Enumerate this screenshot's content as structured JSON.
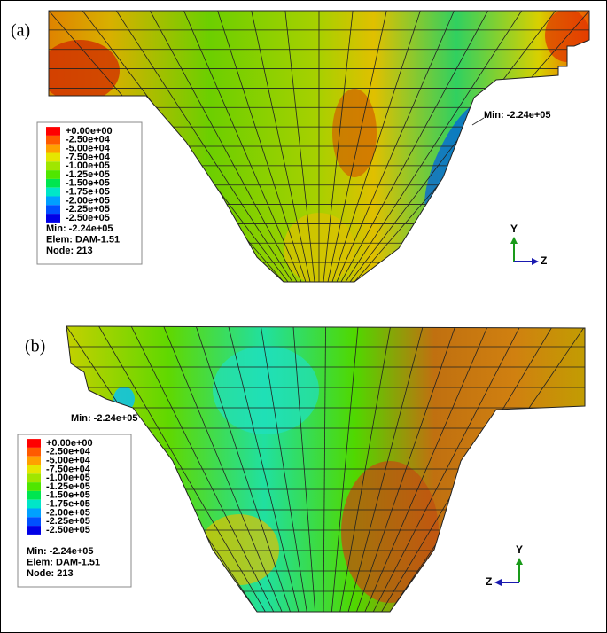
{
  "panels": [
    {
      "label": "(a)",
      "min_annotation": "Min: -2.24e+05",
      "legend": [
        {
          "label": "+0.00e+00",
          "color": "#ff0000"
        },
        {
          "label": "-2.50e+04",
          "color": "#ff5a00"
        },
        {
          "label": "-5.00e+04",
          "color": "#ffa000"
        },
        {
          "label": "-7.50e+04",
          "color": "#e6e600"
        },
        {
          "label": "-1.00e+05",
          "color": "#a0e600"
        },
        {
          "label": "-1.25e+05",
          "color": "#50e600"
        },
        {
          "label": "-1.50e+05",
          "color": "#00e650"
        },
        {
          "label": "-1.75e+05",
          "color": "#00e6c8"
        },
        {
          "label": "-2.00e+05",
          "color": "#00a0ff"
        },
        {
          "label": "-2.25e+05",
          "color": "#0050ff"
        },
        {
          "label": "-2.50e+05",
          "color": "#0000e6"
        }
      ],
      "info": [
        "Min: -2.24e+05",
        "Elem: DAM-1.51",
        "Node: 213"
      ],
      "axes": {
        "y": "Y",
        "z": "Z"
      }
    },
    {
      "label": "(b)",
      "min_annotation": "Min: -2.24e+05",
      "legend": [
        {
          "label": "+0.00e+00",
          "color": "#ff0000"
        },
        {
          "label": "-2.50e+04",
          "color": "#ff5a00"
        },
        {
          "label": "-5.00e+04",
          "color": "#ffa000"
        },
        {
          "label": "-7.50e+04",
          "color": "#e6e600"
        },
        {
          "label": "-1.00e+05",
          "color": "#a0e600"
        },
        {
          "label": "-1.25e+05",
          "color": "#50e600"
        },
        {
          "label": "-1.50e+05",
          "color": "#00e650"
        },
        {
          "label": "-1.75e+05",
          "color": "#00e6c8"
        },
        {
          "label": "-2.00e+05",
          "color": "#00a0ff"
        },
        {
          "label": "-2.25e+05",
          "color": "#0050ff"
        },
        {
          "label": "-2.50e+05",
          "color": "#0000e6"
        }
      ],
      "info": [
        "Min: -2.24e+05",
        "Elem: DAM-1.51",
        "Node: 213"
      ],
      "axes": {
        "y": "Y",
        "z": "Z"
      }
    }
  ]
}
